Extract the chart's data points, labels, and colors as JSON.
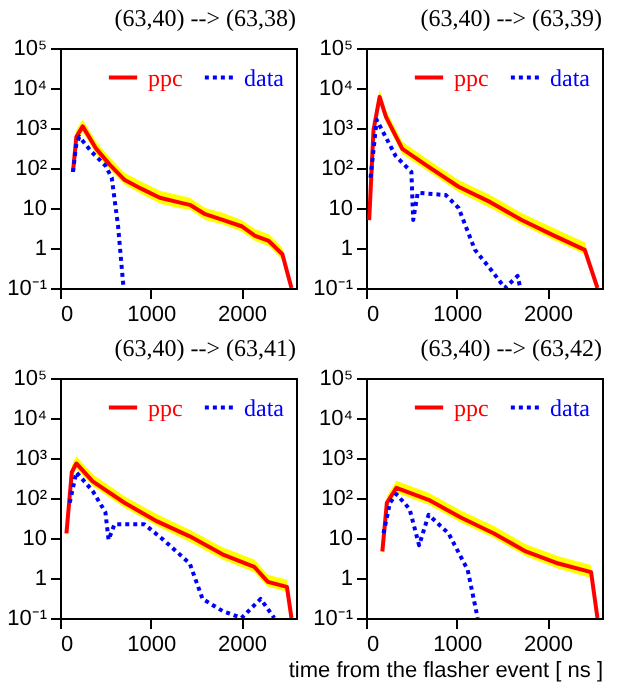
{
  "chart_data": [
    {
      "type": "line",
      "title": "(63,40) --> (63,38)",
      "xlim": [
        0,
        2600
      ],
      "ylim": [
        0.1,
        100000
      ],
      "xticks": [
        0,
        1000,
        2000
      ],
      "yticks": [
        {
          "value": 0.1,
          "label": "10⁻¹"
        },
        {
          "value": 1,
          "label": "1"
        },
        {
          "value": 10,
          "label": "10"
        },
        {
          "value": 100,
          "label": "10²"
        },
        {
          "value": 1000,
          "label": "10³"
        },
        {
          "value": 10000,
          "label": "10⁴"
        },
        {
          "value": 100000,
          "label": "10⁵"
        }
      ],
      "log": "y",
      "legend": "top right",
      "series": [
        {
          "name": "ppc",
          "color": "#ff0000",
          "line_style": "solid",
          "x": [
            143,
            180,
            250,
            400,
            550,
            714,
            900,
            1100,
            1300,
            1430,
            1600,
            1800,
            2000,
            2150,
            2300,
            2450,
            2550
          ],
          "values": [
            80,
            600,
            1100,
            300,
            120,
            50,
            30,
            18,
            14,
            12,
            7,
            5,
            3.5,
            2,
            1.5,
            0.7,
            0.1
          ],
          "upper": [
            120,
            900,
            1600,
            450,
            180,
            75,
            45,
            27,
            21,
            18,
            10,
            7.5,
            5,
            3,
            2.2,
            1,
            0.1
          ],
          "lower": [
            60,
            450,
            800,
            220,
            90,
            38,
            22,
            13,
            10,
            9,
            5,
            3.8,
            2.6,
            1.5,
            1.1,
            0.5,
            0.1
          ]
        },
        {
          "name": "data",
          "color": "#0000ff",
          "line_style": "dotted",
          "x": [
            143,
            180,
            214,
            350,
            500,
            570,
            640,
            700
          ],
          "values": [
            80,
            400,
            600,
            250,
            115,
            57,
            3.5,
            0.1
          ]
        }
      ]
    },
    {
      "type": "line",
      "title": "(63,40) --> (63,39)",
      "xlim": [
        0,
        2600
      ],
      "ylim": [
        0.1,
        100000
      ],
      "xticks": [
        0,
        1000,
        2000
      ],
      "yticks": [
        {
          "value": 0.1,
          "label": "10⁻¹"
        },
        {
          "value": 1,
          "label": "1"
        },
        {
          "value": 10,
          "label": "10"
        },
        {
          "value": 100,
          "label": "10²"
        },
        {
          "value": 1000,
          "label": "10³"
        },
        {
          "value": 10000,
          "label": "10⁴"
        },
        {
          "value": 100000,
          "label": "10⁵"
        }
      ],
      "log": "y",
      "legend": "top right",
      "series": [
        {
          "name": "ppc",
          "color": "#ff0000",
          "line_style": "solid",
          "x": [
            35,
            83,
            150,
            220,
            400,
            670,
            1020,
            1370,
            1715,
            2060,
            2410,
            2550
          ],
          "values": [
            5,
            900,
            6000,
            1900,
            300,
            115,
            34,
            14,
            5,
            2.1,
            0.9,
            0.1
          ],
          "upper": [
            7.5,
            1350,
            9000,
            2800,
            450,
            170,
            50,
            21,
            7.5,
            3.2,
            1.4,
            0.1
          ],
          "lower": [
            3.8,
            680,
            4500,
            1400,
            220,
            86,
            25,
            10,
            3.8,
            1.6,
            0.7,
            0.1
          ]
        },
        {
          "name": "data",
          "color": "#0000ff",
          "line_style": "dotted",
          "x": [
            50,
            118,
            326,
            500,
            520,
            570,
            880,
            1020,
            1200,
            1370,
            1530,
            1670,
            1700
          ],
          "values": [
            57,
            1600,
            200,
            80,
            5,
            24,
            21,
            10,
            0.9,
            0.3,
            0.1,
            0.2,
            0.1
          ]
        }
      ]
    },
    {
      "type": "line",
      "title": "(63,40) --> (63,41)",
      "xlim": [
        0,
        2600
      ],
      "ylim": [
        0.1,
        100000
      ],
      "xticks": [
        0,
        1000,
        2000
      ],
      "yticks": [
        {
          "value": 0.1,
          "label": "10⁻¹"
        },
        {
          "value": 1,
          "label": "1"
        },
        {
          "value": 10,
          "label": "10"
        },
        {
          "value": 100,
          "label": "10²"
        },
        {
          "value": 1000,
          "label": "10³"
        },
        {
          "value": 10000,
          "label": "10⁴"
        },
        {
          "value": 100000,
          "label": "10⁵"
        }
      ],
      "log": "y",
      "legend": "top right",
      "series": [
        {
          "name": "ppc",
          "color": "#ff0000",
          "line_style": "solid",
          "x": [
            71,
            130,
            180,
            360,
            710,
            1070,
            1430,
            1790,
            2140,
            2290,
            2500,
            2550
          ],
          "values": [
            13,
            440,
            730,
            260,
            76,
            26,
            11,
            3.9,
            1.9,
            0.8,
            0.6,
            0.1
          ],
          "upper": [
            20,
            660,
            1100,
            390,
            110,
            39,
            16,
            5.9,
            2.9,
            1.2,
            0.9,
            0.1
          ],
          "lower": [
            10,
            330,
            550,
            200,
            57,
            20,
            8,
            2.9,
            1.4,
            0.6,
            0.45,
            0.1
          ]
        },
        {
          "name": "data",
          "color": "#0000ff",
          "line_style": "dotted",
          "x": [
            107,
            180,
            360,
            500,
            535,
            600,
            930,
            1140,
            1430,
            1570,
            1790,
            2000,
            2210,
            2360
          ],
          "values": [
            76,
            440,
            150,
            44,
            9,
            22,
            22,
            9,
            2.3,
            0.3,
            0.15,
            0.1,
            0.3,
            0.1
          ]
        }
      ]
    },
    {
      "type": "line",
      "title": "(63,40) --> (63,42)",
      "xlabel": "time from the flasher event [ ns ]",
      "xlim": [
        0,
        2600
      ],
      "ylim": [
        0.1,
        100000
      ],
      "xticks": [
        0,
        1000,
        2000
      ],
      "yticks": [
        {
          "value": 0.1,
          "label": "10⁻¹"
        },
        {
          "value": 1,
          "label": "1"
        },
        {
          "value": 10,
          "label": "10"
        },
        {
          "value": 100,
          "label": "10²"
        },
        {
          "value": 1000,
          "label": "10³"
        },
        {
          "value": 10000,
          "label": "10⁴"
        },
        {
          "value": 100000,
          "label": "10⁵"
        }
      ],
      "log": "y",
      "legend": "top right",
      "series": [
        {
          "name": "ppc",
          "color": "#ff0000",
          "line_style": "solid",
          "x": [
            180,
            230,
            335,
            690,
            1050,
            1410,
            1760,
            2120,
            2480,
            2550
          ],
          "values": [
            4.6,
            76,
            180,
            90,
            32,
            13,
            4.6,
            2.3,
            1.4,
            0.1
          ],
          "upper": [
            7,
            110,
            270,
            135,
            48,
            20,
            7,
            3.5,
            2.1,
            0.1
          ],
          "lower": [
            3.5,
            57,
            135,
            68,
            24,
            10,
            3.5,
            1.7,
            1,
            0.1
          ]
        },
        {
          "name": "data",
          "color": "#0000ff",
          "line_style": "dotted",
          "x": [
            193,
            264,
            335,
            480,
            585,
            690,
            910,
            1120,
            1230
          ],
          "values": [
            13,
            76,
            125,
            53,
            6.6,
            38,
            13,
            1.6,
            0.1
          ]
        }
      ]
    }
  ]
}
